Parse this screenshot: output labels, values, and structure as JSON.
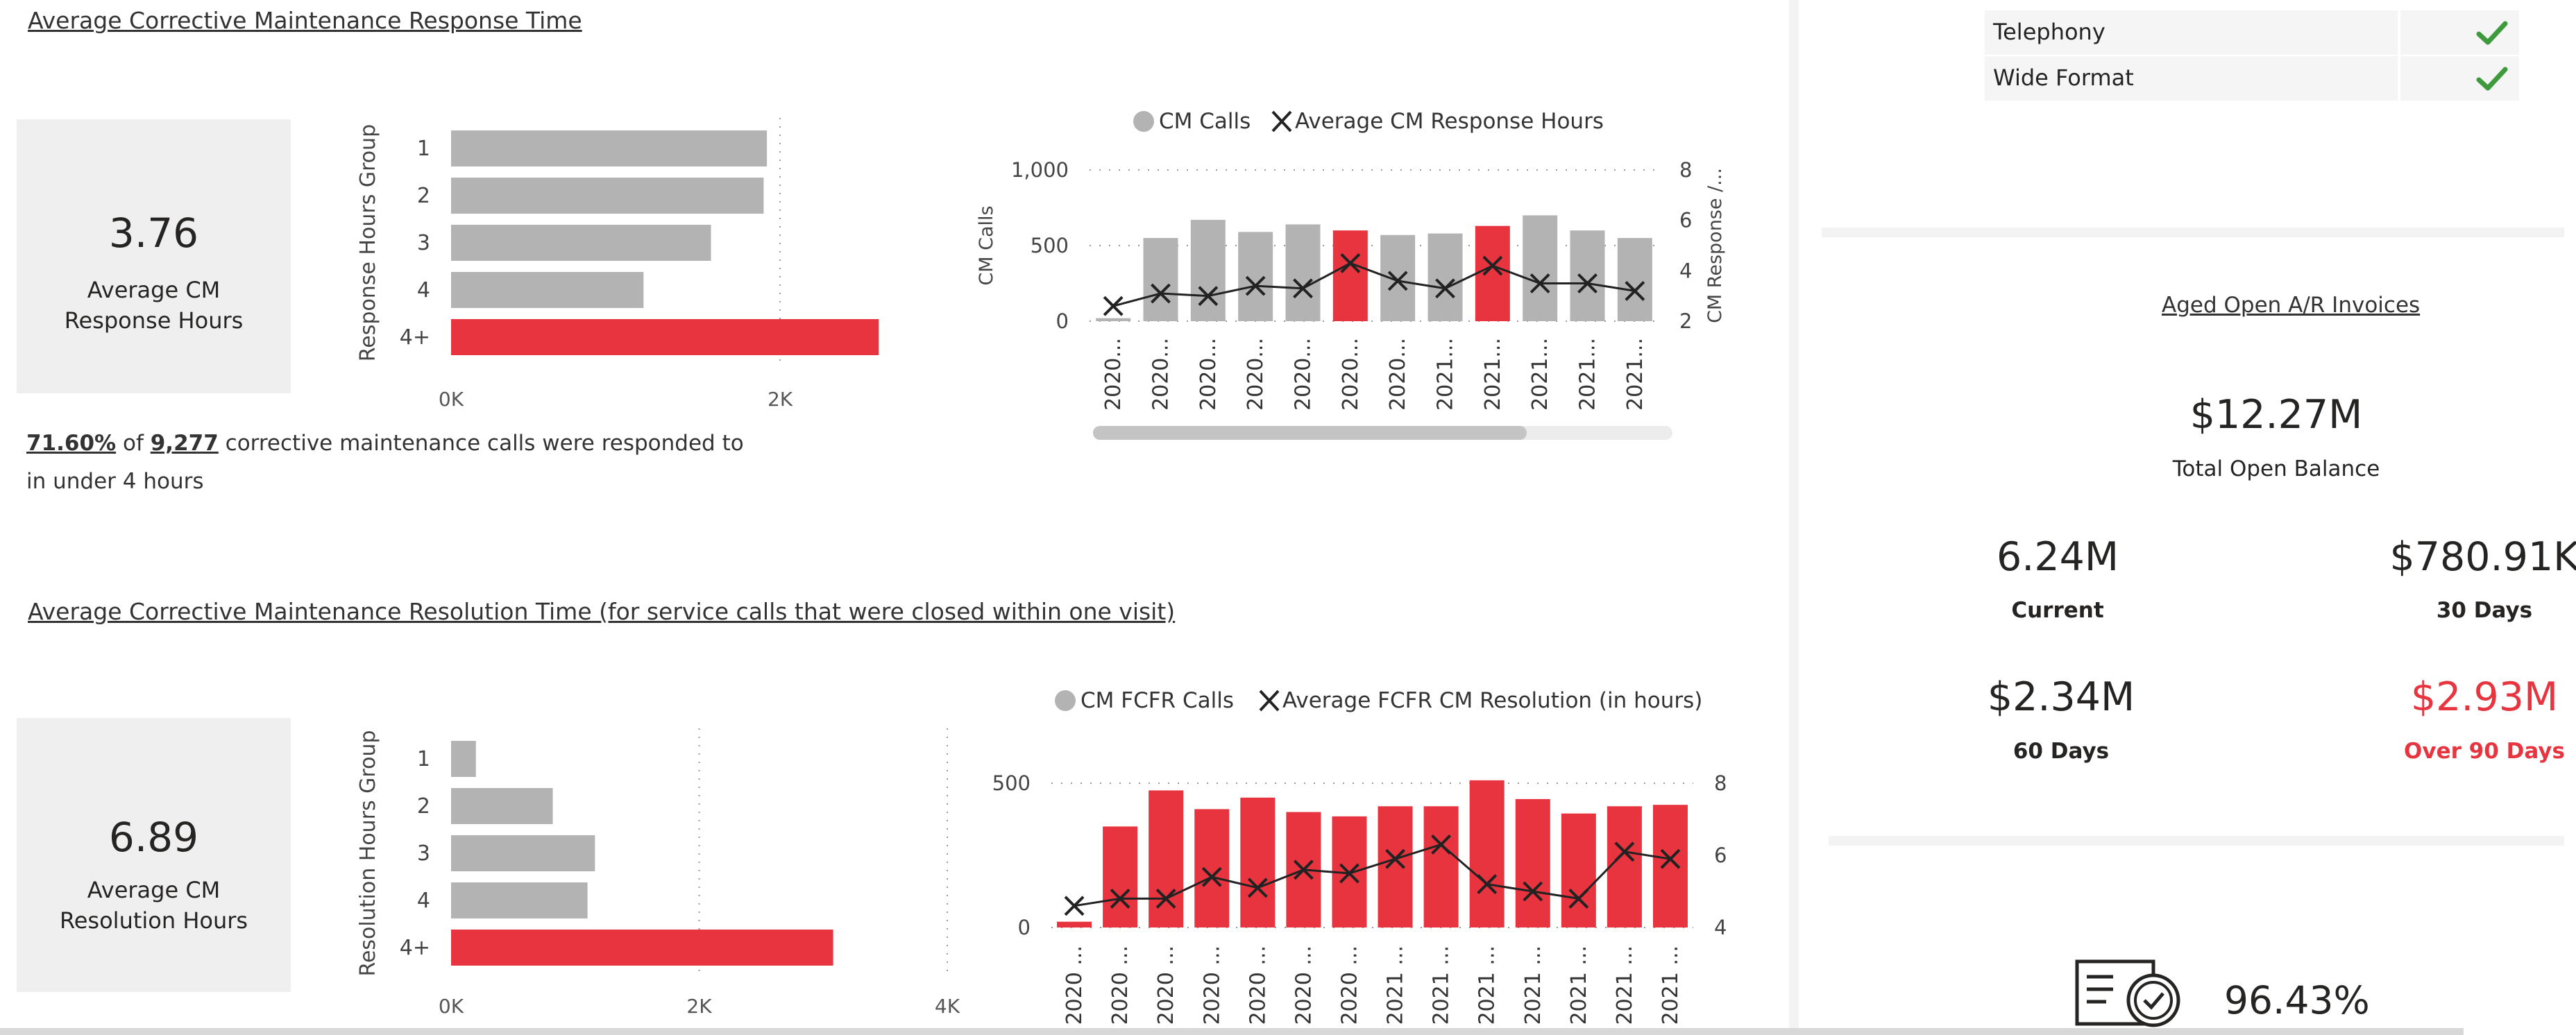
{
  "response": {
    "title": "Average Corrective Maintenance Response Time",
    "kpi_value": "3.76",
    "kpi_label": "Average CM Response Hours",
    "summary": {
      "pct": "71.60%",
      "of": "of",
      "count": "9,277",
      "text": "corrective maintenance calls were responded to in under 4 hours"
    }
  },
  "resolution": {
    "title": "Average Corrective Maintenance Resolution Time (for service calls that were closed within one visit)",
    "kpi_value": "6.89",
    "kpi_label": "Average CM Resolution Hours"
  },
  "checklist": [
    {
      "label": "Telephony",
      "checked": true
    },
    {
      "label": "Wide Format",
      "checked": true
    }
  ],
  "ar": {
    "title": "Aged Open A/R Invoices",
    "total_value": "$12.27M",
    "total_label": "Total Open Balance",
    "current_value": "6.24M",
    "current_label": "Current",
    "d30_value": "$780.91K",
    "d30_label": "30 Days",
    "d60_value": "$2.34M",
    "d60_label": "60 Days",
    "d90_value": "$2.93M",
    "d90_label": "Over 90 Days"
  },
  "bottom_kpi": {
    "value": "96.43%",
    "icon": "certificate-icon"
  },
  "colors": {
    "accent": "#E8343F",
    "gray": "#B3B3B3",
    "check": "#3D9B3D"
  },
  "chart_data": [
    {
      "type": "bar",
      "orientation": "horizontal",
      "ylabel": "Response Hours Group",
      "categories": [
        "1",
        "2",
        "3",
        "4",
        "4+"
      ],
      "values": [
        1920,
        1900,
        1580,
        1170,
        2600
      ],
      "highlight": [
        false,
        false,
        false,
        false,
        true
      ],
      "xticks": [
        "0K",
        "2K"
      ],
      "xlim": [
        0,
        2700
      ]
    },
    {
      "type": "bar+line",
      "legend": [
        "CM Calls",
        "Average CM Response Hours"
      ],
      "ylabel": "CM Calls",
      "y2label": "CM Response /...",
      "categories": [
        "2020...",
        "2020...",
        "2020...",
        "2020...",
        "2020...",
        "2020...",
        "2020...",
        "2021...",
        "2021...",
        "2021...",
        "2021...",
        "2021..."
      ],
      "bars": [
        20,
        550,
        670,
        590,
        640,
        600,
        570,
        580,
        630,
        700,
        600,
        550
      ],
      "highlight": [
        false,
        false,
        false,
        false,
        false,
        true,
        false,
        false,
        true,
        false,
        false,
        false
      ],
      "line": [
        2.6,
        3.1,
        3.0,
        3.4,
        3.3,
        4.3,
        3.6,
        3.3,
        4.2,
        3.5,
        3.5,
        3.2
      ],
      "yticks": [
        "0",
        "500",
        "1,000"
      ],
      "y2ticks": [
        "2",
        "4",
        "6",
        "8"
      ],
      "ylim": [
        0,
        1000
      ],
      "y2lim": [
        2,
        8
      ]
    },
    {
      "type": "bar",
      "orientation": "horizontal",
      "ylabel": "Resolution Hours Group",
      "categories": [
        "1",
        "2",
        "3",
        "4",
        "4+"
      ],
      "values": [
        200,
        820,
        1160,
        1100,
        3080
      ],
      "highlight": [
        false,
        false,
        false,
        false,
        true
      ],
      "xticks": [
        "0K",
        "2K",
        "4K"
      ],
      "xlim": [
        0,
        4000
      ]
    },
    {
      "type": "bar+line",
      "legend": [
        "CM FCFR Calls",
        "Average FCFR CM Resolution (in hours)"
      ],
      "categories": [
        "2020 ...",
        "2020 ...",
        "2020 ...",
        "2020 ...",
        "2020 ...",
        "2020 ...",
        "2020 ...",
        "2021 ...",
        "2021 ...",
        "2021 ...",
        "2021 ...",
        "2021 ...",
        "2021 ...",
        "2021 ..."
      ],
      "bars": [
        20,
        350,
        475,
        410,
        450,
        400,
        385,
        420,
        420,
        510,
        445,
        395,
        420,
        425
      ],
      "line": [
        4.6,
        4.8,
        4.8,
        5.4,
        5.1,
        5.6,
        5.5,
        5.9,
        6.3,
        5.2,
        5.0,
        4.8,
        6.1,
        5.9
      ],
      "yticks": [
        "0",
        "500"
      ],
      "y2ticks": [
        "4",
        "6",
        "8"
      ],
      "ylim": [
        0,
        500
      ],
      "y2lim": [
        4,
        8
      ]
    }
  ]
}
